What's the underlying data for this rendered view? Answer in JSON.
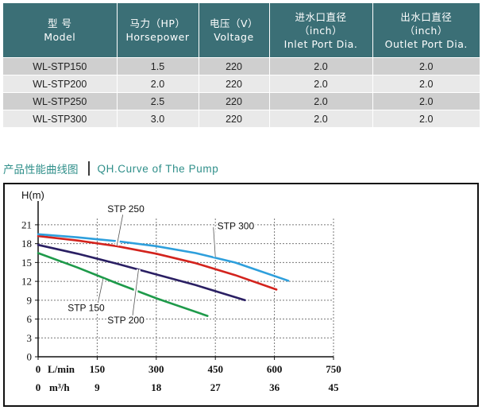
{
  "table": {
    "headers": [
      {
        "cn": "型 号",
        "en": "Model"
      },
      {
        "cn": "马力（HP）",
        "en": "Horsepower"
      },
      {
        "cn": "电压（V）",
        "en": "Voltage"
      },
      {
        "cn": "进水口直径",
        "sub": "（inch）",
        "en": "Inlet Port Dia."
      },
      {
        "cn": "出水口直径",
        "sub": "（inch）",
        "en": "Outlet Port Dia."
      }
    ],
    "rows": [
      {
        "model": "WL-STP150",
        "hp": "1.5",
        "voltage": "220",
        "inlet": "2.0",
        "outlet": "2.0"
      },
      {
        "model": "WL-STP200",
        "hp": "2.0",
        "voltage": "220",
        "inlet": "2.0",
        "outlet": "2.0"
      },
      {
        "model": "WL-STP250",
        "hp": "2.5",
        "voltage": "220",
        "inlet": "2.0",
        "outlet": "2.0"
      },
      {
        "model": "WL-STP300",
        "hp": "3.0",
        "voltage": "220",
        "inlet": "2.0",
        "outlet": "2.0"
      }
    ]
  },
  "section": {
    "title_cn": "产品性能曲线图",
    "title_en": "QH.Curve of The Pump"
  },
  "chart_data": {
    "type": "line",
    "ylabel": "H(m)",
    "xlabel": "L/min",
    "xlabel2": "m³/h",
    "xlim": [
      0,
      750
    ],
    "ylim": [
      0,
      22
    ],
    "yticks": [
      0,
      3,
      6,
      9,
      12,
      15,
      18,
      21
    ],
    "xticks": [
      0,
      150,
      300,
      450,
      600,
      750
    ],
    "xticks2": [
      "0",
      "9",
      "18",
      "27",
      "36",
      "45"
    ],
    "grid": true,
    "series": [
      {
        "name": "STP 150",
        "color": "#1e9a4a",
        "x": [
          0,
          100,
          200,
          300,
          430
        ],
        "y": [
          16.5,
          14.2,
          11.7,
          9.3,
          6.5
        ],
        "label_pos": [
          75,
          23
        ]
      },
      {
        "name": "STP 200",
        "color": "#2a1f63",
        "x": [
          0,
          100,
          200,
          300,
          400,
          525
        ],
        "y": [
          17.8,
          16.4,
          14.8,
          13.1,
          11.4,
          9.0
        ],
        "label_pos": [
          235,
          20
        ]
      },
      {
        "name": "STP 250",
        "color": "#d3231d",
        "x": [
          0,
          100,
          200,
          300,
          400,
          500,
          605
        ],
        "y": [
          19.2,
          18.5,
          17.6,
          16.4,
          14.9,
          13.0,
          10.7
        ],
        "label_pos": [
          245,
          31
        ]
      },
      {
        "name": "STP 300",
        "color": "#2e9fdc",
        "x": [
          0,
          100,
          200,
          300,
          400,
          500,
          635
        ],
        "y": [
          19.5,
          19.0,
          18.4,
          17.6,
          16.5,
          15.0,
          12.1
        ],
        "label_pos": [
          555,
          28.5
        ]
      }
    ],
    "leaders": [
      {
        "from": [
          75,
          23
        ],
        "to": [
          210,
          18.3
        ]
      },
      {
        "from": [
          555,
          28.5
        ],
        "to": [
          460,
          15.3
        ]
      }
    ]
  }
}
